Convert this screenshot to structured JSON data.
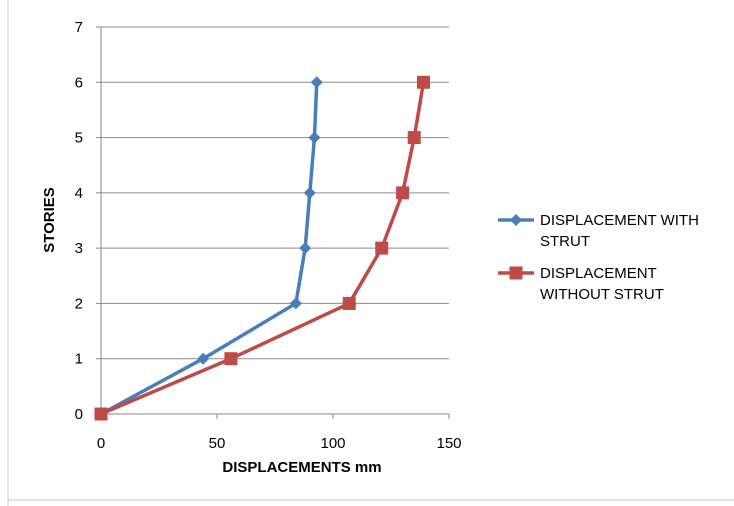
{
  "chart_data": {
    "type": "line",
    "title": "",
    "xlabel": "DISPLACEMENTS mm",
    "ylabel": "STORIES",
    "xlim": [
      0,
      150
    ],
    "ylim": [
      0,
      7
    ],
    "x_ticks": [
      0,
      50,
      100,
      150
    ],
    "y_ticks": [
      0,
      1,
      2,
      3,
      4,
      5,
      6,
      7
    ],
    "grid": "horizontal",
    "legend_position": "right",
    "series": [
      {
        "name": "DISPLACEMENT WITH STRUT",
        "legend_lines": [
          "DISPLACEMENT WITH",
          "STRUT"
        ],
        "color": "#4a7ebb",
        "marker": "diamond",
        "x": [
          0,
          44,
          84,
          88,
          90,
          92,
          93
        ],
        "y": [
          0,
          1,
          2,
          3,
          4,
          5,
          6
        ]
      },
      {
        "name": "DISPLACEMENT WITHOUT STRUT",
        "legend_lines": [
          "DISPLACEMENT",
          "WITHOUT STRUT"
        ],
        "color": "#be4b48",
        "marker": "square",
        "x": [
          0,
          56,
          107,
          121,
          130,
          135,
          139
        ],
        "y": [
          0,
          1,
          2,
          3,
          4,
          5,
          6
        ]
      }
    ]
  }
}
